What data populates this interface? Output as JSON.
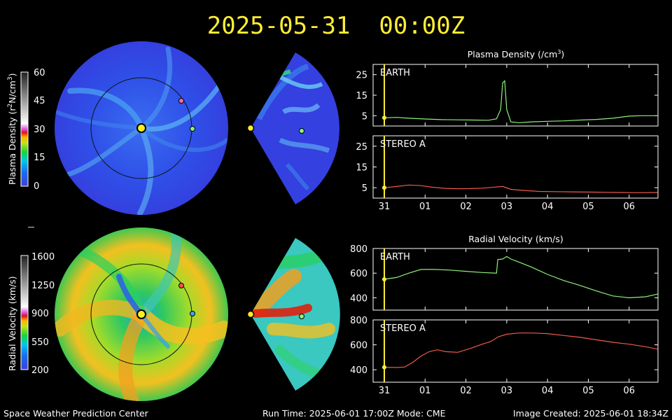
{
  "header": {
    "datetime": "2025-05-31  00:00Z"
  },
  "footer": {
    "left": "Space Weather Prediction Center",
    "center": "Run Time: 2025-06-01 17:00Z  Mode: CME",
    "right": "Image Created: 2025-06-01 18:34Z"
  },
  "colorbars": {
    "density": {
      "ticks": [
        "60",
        "45",
        "30",
        "15",
        "0"
      ]
    },
    "velocity": {
      "ticks": [
        "1600",
        "1250",
        "900",
        "550",
        "200"
      ]
    }
  },
  "colors": {
    "earth_series": "#8df07a",
    "stereo_series": "#ef5a4a",
    "marker_line": "#ffee33",
    "background": "#000000"
  },
  "chart_data": [
    {
      "type": "line",
      "title": "Plasma Density (/cm3)",
      "title_prefix": "Plasma Density (/cm",
      "title_sup": "3",
      "title_suffix": ")",
      "panels": [
        {
          "label": "EARTH",
          "color": "#8df07a",
          "ylim": [
            0,
            30
          ],
          "yticks": [
            5,
            15,
            25
          ],
          "x": [
            0,
            0.3,
            0.6,
            1.0,
            1.4,
            1.8,
            2.2,
            2.55,
            2.75,
            2.85,
            2.9,
            2.95,
            3.0,
            3.1,
            3.3,
            3.6,
            4.0,
            4.4,
            4.8,
            5.2,
            5.6,
            6.0,
            6.3,
            6.7
          ],
          "values": [
            4,
            4.2,
            3.8,
            3.4,
            3.1,
            3.0,
            2.9,
            2.8,
            3.5,
            8,
            21,
            22,
            8,
            2,
            1.6,
            2.0,
            2.3,
            2.5,
            2.9,
            3.2,
            3.8,
            4.8,
            5.0,
            5.0
          ]
        },
        {
          "label": "STEREO A",
          "color": "#ef5a4a",
          "ylim": [
            0,
            30
          ],
          "yticks": [
            5,
            15,
            25
          ],
          "x": [
            0,
            0.3,
            0.6,
            0.9,
            1.2,
            1.5,
            1.8,
            2.1,
            2.4,
            2.7,
            2.9,
            3.1,
            3.4,
            3.8,
            4.2,
            4.6,
            5.0,
            5.4,
            5.8,
            6.2,
            6.7
          ],
          "values": [
            5.0,
            5.6,
            6.3,
            6.0,
            5.2,
            4.7,
            4.5,
            4.6,
            4.8,
            5.3,
            5.6,
            4.2,
            3.7,
            3.2,
            3.1,
            3.0,
            2.9,
            2.8,
            2.7,
            2.6,
            2.7
          ]
        }
      ],
      "x_ticks": [
        "31",
        "01",
        "02",
        "03",
        "04",
        "05",
        "06"
      ],
      "current_time_x": 0
    },
    {
      "type": "line",
      "title": "Radial Velocity (km/s)",
      "panels": [
        {
          "label": "EARTH",
          "color": "#8df07a",
          "ylim": [
            300,
            800
          ],
          "yticks": [
            400,
            600,
            800
          ],
          "x": [
            0,
            0.3,
            0.6,
            0.9,
            1.2,
            1.6,
            2.0,
            2.4,
            2.75,
            2.78,
            2.9,
            3.0,
            3.1,
            3.3,
            3.6,
            4.0,
            4.4,
            4.8,
            5.2,
            5.6,
            6.0,
            6.4,
            6.7
          ],
          "values": [
            550,
            565,
            600,
            630,
            630,
            625,
            615,
            605,
            600,
            710,
            715,
            735,
            715,
            690,
            650,
            590,
            540,
            500,
            455,
            415,
            400,
            408,
            430
          ]
        },
        {
          "label": "STEREO A",
          "color": "#ef5a4a",
          "ylim": [
            300,
            800
          ],
          "yticks": [
            400,
            600,
            800
          ],
          "x": [
            0,
            0.3,
            0.5,
            0.7,
            0.9,
            1.1,
            1.3,
            1.5,
            1.8,
            2.1,
            2.4,
            2.6,
            2.8,
            3.0,
            3.3,
            3.6,
            4.0,
            4.4,
            4.8,
            5.2,
            5.6,
            6.0,
            6.4,
            6.7
          ],
          "values": [
            420,
            418,
            422,
            460,
            510,
            545,
            560,
            545,
            540,
            570,
            605,
            625,
            665,
            685,
            695,
            695,
            690,
            675,
            660,
            640,
            620,
            605,
            585,
            565
          ]
        }
      ],
      "x_ticks": [
        "31",
        "01",
        "02",
        "03",
        "04",
        "05",
        "06"
      ],
      "current_time_x": 0
    }
  ]
}
